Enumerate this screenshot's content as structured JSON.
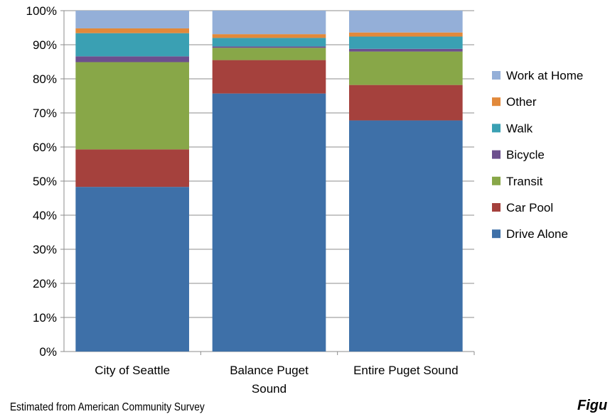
{
  "chart_data": {
    "type": "bar",
    "stacked": true,
    "categories": [
      "City of Seattle",
      "Balance Puget Sound",
      "Entire Puget Sound"
    ],
    "category_lines": [
      [
        "City of Seattle"
      ],
      [
        "Balance Puget",
        "Sound"
      ],
      [
        "Entire Puget Sound"
      ]
    ],
    "series": [
      {
        "name": "Drive Alone",
        "color": "#3e70a8",
        "values": [
          48.3,
          75.7,
          67.8
        ]
      },
      {
        "name": "Car Pool",
        "color": "#a5413d",
        "values": [
          11.0,
          9.8,
          10.4
        ]
      },
      {
        "name": "Transit",
        "color": "#88a748",
        "values": [
          25.6,
          3.6,
          9.8
        ]
      },
      {
        "name": "Bicycle",
        "color": "#6c4f8e",
        "values": [
          1.7,
          0.4,
          0.8
        ]
      },
      {
        "name": "Walk",
        "color": "#3aa0b3",
        "values": [
          6.8,
          2.5,
          3.6
        ]
      },
      {
        "name": "Other",
        "color": "#e2893a",
        "values": [
          1.4,
          1.1,
          1.2
        ]
      },
      {
        "name": "Work at Home",
        "color": "#94afd8",
        "values": [
          5.2,
          6.9,
          6.4
        ]
      }
    ],
    "yticks": [
      "0%",
      "10%",
      "20%",
      "30%",
      "40%",
      "50%",
      "60%",
      "70%",
      "80%",
      "90%",
      "100%"
    ],
    "ylim": [
      0,
      100
    ],
    "grid": true,
    "legend_position": "right",
    "legend_order": [
      "Work at Home",
      "Other",
      "Walk",
      "Bicycle",
      "Transit",
      "Car Pool",
      "Drive Alone"
    ]
  },
  "source_note": "Estimated from American Community Survey",
  "figure_label": "Figu"
}
